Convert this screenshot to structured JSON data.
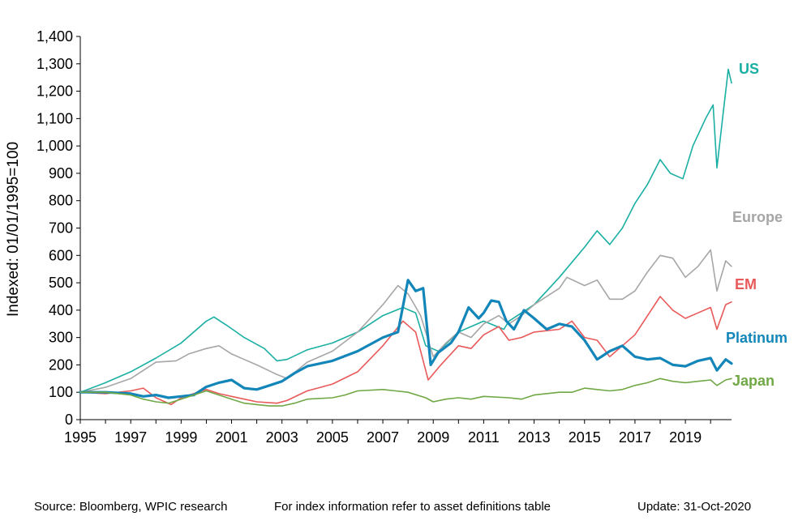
{
  "chart_data": {
    "type": "line",
    "ylabel": "Indexed: 01/01/1995=100",
    "ylim": [
      0,
      1400
    ],
    "yticks": [
      0,
      100,
      200,
      300,
      400,
      500,
      600,
      700,
      800,
      900,
      1000,
      1100,
      1200,
      1300,
      1400
    ],
    "ytick_labels": [
      "0",
      "100",
      "200",
      "300",
      "400",
      "500",
      "600",
      "700",
      "800",
      "900",
      "1,000",
      "1,100",
      "1,200",
      "1,300",
      "1,400"
    ],
    "xlim": [
      1995,
      2020.83
    ],
    "xticks": [
      1995,
      1997,
      1999,
      2001,
      2003,
      2005,
      2007,
      2009,
      2011,
      2013,
      2015,
      2017,
      2019
    ],
    "xtick_labels": [
      "1995",
      "1997",
      "1999",
      "2001",
      "2003",
      "2005",
      "2007",
      "2009",
      "2011",
      "2013",
      "2015",
      "2017",
      "2019"
    ],
    "grid": false,
    "legend": "inline labels at right",
    "series": [
      {
        "name": "US",
        "color": "#1aafa3",
        "width": 1.6,
        "points": [
          [
            1995,
            100
          ],
          [
            1996,
            135
          ],
          [
            1997,
            175
          ],
          [
            1998,
            225
          ],
          [
            1999,
            280
          ],
          [
            2000,
            360
          ],
          [
            2000.3,
            375
          ],
          [
            2000.8,
            345
          ],
          [
            2001.5,
            300
          ],
          [
            2002.3,
            260
          ],
          [
            2002.8,
            215
          ],
          [
            2003.2,
            220
          ],
          [
            2004,
            255
          ],
          [
            2005,
            280
          ],
          [
            2006,
            320
          ],
          [
            2007,
            380
          ],
          [
            2007.8,
            410
          ],
          [
            2008.3,
            390
          ],
          [
            2008.7,
            270
          ],
          [
            2009.2,
            250
          ],
          [
            2010,
            320
          ],
          [
            2011,
            360
          ],
          [
            2011.8,
            330
          ],
          [
            2012,
            360
          ],
          [
            2013,
            420
          ],
          [
            2014,
            520
          ],
          [
            2015,
            630
          ],
          [
            2015.5,
            690
          ],
          [
            2016,
            640
          ],
          [
            2016.5,
            700
          ],
          [
            2017,
            790
          ],
          [
            2017.5,
            860
          ],
          [
            2018,
            950
          ],
          [
            2018.4,
            900
          ],
          [
            2018.9,
            880
          ],
          [
            2019.3,
            1000
          ],
          [
            2019.8,
            1100
          ],
          [
            2020.1,
            1150
          ],
          [
            2020.25,
            920
          ],
          [
            2020.5,
            1120
          ],
          [
            2020.7,
            1280
          ],
          [
            2020.83,
            1230
          ]
        ]
      },
      {
        "name": "Europe",
        "color": "#a6a6a6",
        "width": 1.6,
        "points": [
          [
            1995,
            100
          ],
          [
            1996,
            118
          ],
          [
            1997,
            150
          ],
          [
            1998,
            210
          ],
          [
            1998.8,
            215
          ],
          [
            1999.3,
            240
          ],
          [
            2000,
            260
          ],
          [
            2000.5,
            270
          ],
          [
            2001,
            240
          ],
          [
            2001.5,
            220
          ],
          [
            2002,
            200
          ],
          [
            2002.8,
            165
          ],
          [
            2003.2,
            150
          ],
          [
            2004,
            210
          ],
          [
            2005,
            250
          ],
          [
            2006,
            320
          ],
          [
            2007,
            420
          ],
          [
            2007.6,
            490
          ],
          [
            2008,
            460
          ],
          [
            2008.5,
            380
          ],
          [
            2009,
            230
          ],
          [
            2009.5,
            280
          ],
          [
            2010,
            320
          ],
          [
            2010.5,
            300
          ],
          [
            2011,
            350
          ],
          [
            2011.6,
            380
          ],
          [
            2012,
            350
          ],
          [
            2012.5,
            380
          ],
          [
            2013,
            420
          ],
          [
            2014,
            480
          ],
          [
            2014.3,
            520
          ],
          [
            2015,
            490
          ],
          [
            2015.5,
            510
          ],
          [
            2016,
            440
          ],
          [
            2016.5,
            440
          ],
          [
            2017,
            470
          ],
          [
            2017.5,
            540
          ],
          [
            2018,
            600
          ],
          [
            2018.5,
            590
          ],
          [
            2019,
            520
          ],
          [
            2019.5,
            560
          ],
          [
            2020,
            620
          ],
          [
            2020.25,
            470
          ],
          [
            2020.6,
            580
          ],
          [
            2020.83,
            560
          ]
        ]
      },
      {
        "name": "EM",
        "color": "#e8595a",
        "width": 1.6,
        "points": [
          [
            1995,
            100
          ],
          [
            1996,
            95
          ],
          [
            1997,
            105
          ],
          [
            1997.5,
            115
          ],
          [
            1998,
            80
          ],
          [
            1998.6,
            55
          ],
          [
            1999,
            80
          ],
          [
            2000,
            110
          ],
          [
            2000.5,
            95
          ],
          [
            2001,
            85
          ],
          [
            2001.5,
            75
          ],
          [
            2002,
            65
          ],
          [
            2002.8,
            60
          ],
          [
            2003.2,
            70
          ],
          [
            2004,
            105
          ],
          [
            2005,
            130
          ],
          [
            2006,
            175
          ],
          [
            2007,
            270
          ],
          [
            2007.8,
            360
          ],
          [
            2008.3,
            320
          ],
          [
            2008.8,
            145
          ],
          [
            2009.3,
            200
          ],
          [
            2010,
            270
          ],
          [
            2010.5,
            260
          ],
          [
            2011,
            310
          ],
          [
            2011.6,
            340
          ],
          [
            2012,
            290
          ],
          [
            2012.5,
            300
          ],
          [
            2013,
            320
          ],
          [
            2014,
            330
          ],
          [
            2014.5,
            360
          ],
          [
            2015,
            300
          ],
          [
            2015.5,
            290
          ],
          [
            2016,
            230
          ],
          [
            2016.5,
            270
          ],
          [
            2017,
            310
          ],
          [
            2017.5,
            380
          ],
          [
            2018,
            450
          ],
          [
            2018.5,
            400
          ],
          [
            2019,
            370
          ],
          [
            2019.5,
            390
          ],
          [
            2020,
            410
          ],
          [
            2020.25,
            330
          ],
          [
            2020.6,
            420
          ],
          [
            2020.83,
            430
          ]
        ]
      },
      {
        "name": "Platinum",
        "color": "#1386b9",
        "width": 3.2,
        "points": [
          [
            1995,
            100
          ],
          [
            1996,
            100
          ],
          [
            1997,
            95
          ],
          [
            1997.5,
            85
          ],
          [
            1998,
            90
          ],
          [
            1998.5,
            80
          ],
          [
            1999,
            85
          ],
          [
            1999.5,
            90
          ],
          [
            2000,
            120
          ],
          [
            2000.5,
            135
          ],
          [
            2001,
            145
          ],
          [
            2001.5,
            115
          ],
          [
            2002,
            110
          ],
          [
            2002.5,
            125
          ],
          [
            2003,
            140
          ],
          [
            2003.5,
            170
          ],
          [
            2004,
            195
          ],
          [
            2005,
            215
          ],
          [
            2006,
            250
          ],
          [
            2007,
            300
          ],
          [
            2007.6,
            320
          ],
          [
            2008,
            510
          ],
          [
            2008.3,
            470
          ],
          [
            2008.6,
            480
          ],
          [
            2008.9,
            200
          ],
          [
            2009.2,
            245
          ],
          [
            2009.7,
            280
          ],
          [
            2010,
            320
          ],
          [
            2010.4,
            410
          ],
          [
            2010.8,
            370
          ],
          [
            2011,
            390
          ],
          [
            2011.3,
            435
          ],
          [
            2011.6,
            430
          ],
          [
            2011.9,
            360
          ],
          [
            2012.2,
            330
          ],
          [
            2012.6,
            400
          ],
          [
            2013,
            370
          ],
          [
            2013.5,
            330
          ],
          [
            2014,
            350
          ],
          [
            2014.5,
            340
          ],
          [
            2015,
            290
          ],
          [
            2015.5,
            220
          ],
          [
            2016,
            250
          ],
          [
            2016.5,
            270
          ],
          [
            2017,
            230
          ],
          [
            2017.5,
            220
          ],
          [
            2018,
            225
          ],
          [
            2018.5,
            200
          ],
          [
            2019,
            195
          ],
          [
            2019.5,
            215
          ],
          [
            2020,
            225
          ],
          [
            2020.25,
            180
          ],
          [
            2020.6,
            220
          ],
          [
            2020.83,
            205
          ]
        ]
      },
      {
        "name": "Japan",
        "color": "#70a845",
        "width": 1.6,
        "points": [
          [
            1995,
            100
          ],
          [
            1996,
            100
          ],
          [
            1997,
            90
          ],
          [
            1997.5,
            75
          ],
          [
            1998,
            65
          ],
          [
            1998.5,
            60
          ],
          [
            1999,
            75
          ],
          [
            2000,
            105
          ],
          [
            2000.5,
            90
          ],
          [
            2001,
            75
          ],
          [
            2001.5,
            60
          ],
          [
            2002,
            55
          ],
          [
            2002.5,
            50
          ],
          [
            2003,
            50
          ],
          [
            2003.5,
            60
          ],
          [
            2004,
            75
          ],
          [
            2005,
            80
          ],
          [
            2005.5,
            90
          ],
          [
            2006,
            105
          ],
          [
            2007,
            110
          ],
          [
            2007.5,
            105
          ],
          [
            2008,
            100
          ],
          [
            2008.7,
            80
          ],
          [
            2009,
            65
          ],
          [
            2009.5,
            75
          ],
          [
            2010,
            80
          ],
          [
            2010.5,
            75
          ],
          [
            2011,
            85
          ],
          [
            2012,
            80
          ],
          [
            2012.5,
            75
          ],
          [
            2013,
            90
          ],
          [
            2014,
            100
          ],
          [
            2014.5,
            100
          ],
          [
            2015,
            115
          ],
          [
            2015.5,
            110
          ],
          [
            2016,
            105
          ],
          [
            2016.5,
            110
          ],
          [
            2017,
            125
          ],
          [
            2017.5,
            135
          ],
          [
            2018,
            150
          ],
          [
            2018.5,
            140
          ],
          [
            2019,
            135
          ],
          [
            2019.5,
            140
          ],
          [
            2020,
            145
          ],
          [
            2020.25,
            125
          ],
          [
            2020.6,
            145
          ],
          [
            2020.83,
            150
          ]
        ]
      }
    ],
    "labels": [
      {
        "text": "US",
        "color": "#1aafa3"
      },
      {
        "text": "Europe",
        "color": "#a6a6a6"
      },
      {
        "text": "EM",
        "color": "#e8595a"
      },
      {
        "text": "Platinum",
        "color": "#1386b9"
      },
      {
        "text": "Japan",
        "color": "#70a845"
      }
    ]
  },
  "footer": {
    "source": "Source: Bloomberg, WPIC research",
    "note": "For index information refer to asset definitions table",
    "update": "Update: 31-Oct-2020"
  }
}
